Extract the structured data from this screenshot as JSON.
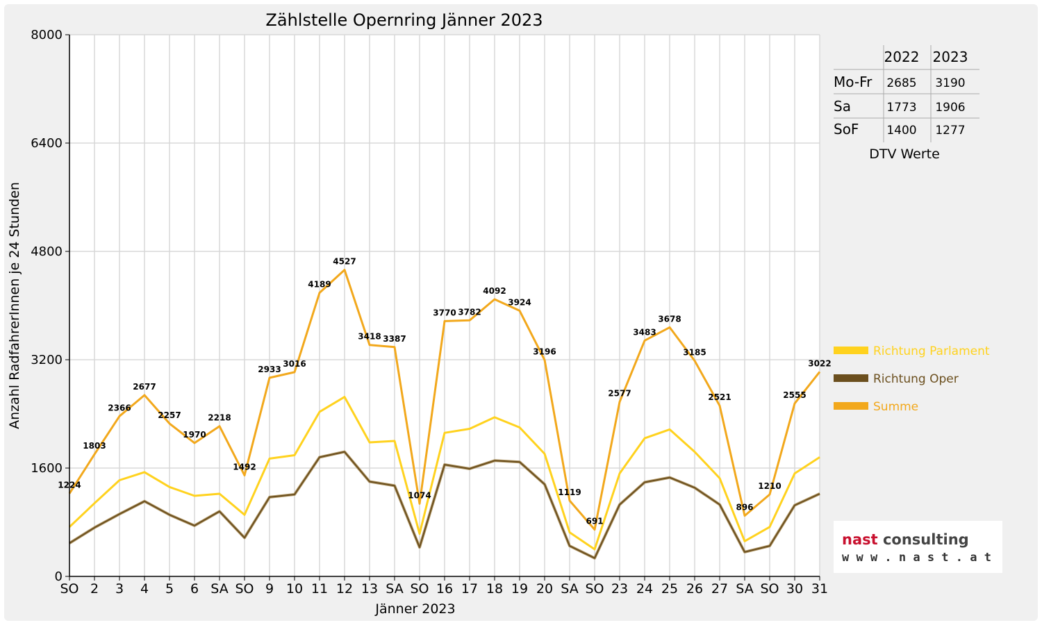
{
  "chart_data": {
    "type": "line",
    "title": "Zählstelle Opernring Jänner 2023",
    "xlabel": "Jänner 2023",
    "ylabel": "Anzahl RadfahrerInnen je 24 Stunden",
    "ylim": [
      0,
      8000
    ],
    "yticks": [
      0,
      1600,
      3200,
      4800,
      6400,
      8000
    ],
    "grid": true,
    "legend_position": "right",
    "categories": [
      "SO",
      "2",
      "3",
      "4",
      "5",
      "6",
      "SA",
      "SO",
      "9",
      "10",
      "11",
      "12",
      "13",
      "SA",
      "SO",
      "16",
      "17",
      "18",
      "19",
      "20",
      "SA",
      "SO",
      "23",
      "24",
      "25",
      "26",
      "27",
      "SA",
      "SO",
      "30",
      "31"
    ],
    "red_categories": [
      0,
      5,
      7,
      14,
      21,
      28
    ],
    "series": [
      {
        "name": "Richtung Parlament",
        "color": "#ffd21e",
        "values": [
          730,
          1080,
          1420,
          1540,
          1320,
          1190,
          1220,
          910,
          1740,
          1790,
          2430,
          2650,
          1980,
          2000,
          630,
          2120,
          2180,
          2350,
          2200,
          1810,
          650,
          400,
          1520,
          2040,
          2170,
          1840,
          1450,
          520,
          730,
          1520,
          1760
        ]
      },
      {
        "name": "Richtung Oper",
        "color": "#6b4f1e",
        "values": [
          490,
          720,
          920,
          1110,
          910,
          750,
          960,
          570,
          1170,
          1210,
          1760,
          1840,
          1400,
          1340,
          430,
          1650,
          1590,
          1710,
          1690,
          1360,
          450,
          270,
          1060,
          1390,
          1460,
          1310,
          1060,
          360,
          450,
          1050,
          1220
        ]
      },
      {
        "name": "Summe",
        "color": "#f2a81c",
        "values": [
          1224,
          1803,
          2366,
          2677,
          2257,
          1970,
          2218,
          1492,
          2933,
          3016,
          4189,
          4527,
          3418,
          3387,
          1074,
          3770,
          3782,
          4092,
          3924,
          3196,
          1119,
          691,
          2577,
          3483,
          3678,
          3185,
          2521,
          896,
          1210,
          2555,
          3022
        ],
        "labels": [
          "1224",
          "1803",
          "2366",
          "2677",
          "2257",
          "1970",
          "2218",
          "1492",
          "2933",
          "3016",
          "4189",
          "4527",
          "3418",
          "3387",
          "1074",
          "3770",
          "3782",
          "4092",
          "3924",
          "3196",
          "1119",
          "691",
          "2577",
          "3483",
          "3678",
          "3185",
          "2521",
          "896",
          "1210",
          "2555",
          "3022"
        ]
      }
    ],
    "dtv_table": {
      "caption": "DTV Werte",
      "columns": [
        "",
        "2022",
        "2023"
      ],
      "rows": [
        [
          "Mo-Fr",
          "2685",
          "3190"
        ],
        [
          "Sa",
          "1773",
          "1906"
        ],
        [
          "SoF",
          "1400",
          "1277"
        ]
      ]
    }
  },
  "logo": {
    "name": "nast consulting",
    "url": "w w w . n a s t . a t",
    "colors": {
      "nast": "#c8102e",
      "consulting": "#444444"
    }
  },
  "colors": {
    "background": "#f0f0f0",
    "plot": "#ffffff",
    "grid": "#d8d8d8",
    "sunday": "#ff0000"
  }
}
